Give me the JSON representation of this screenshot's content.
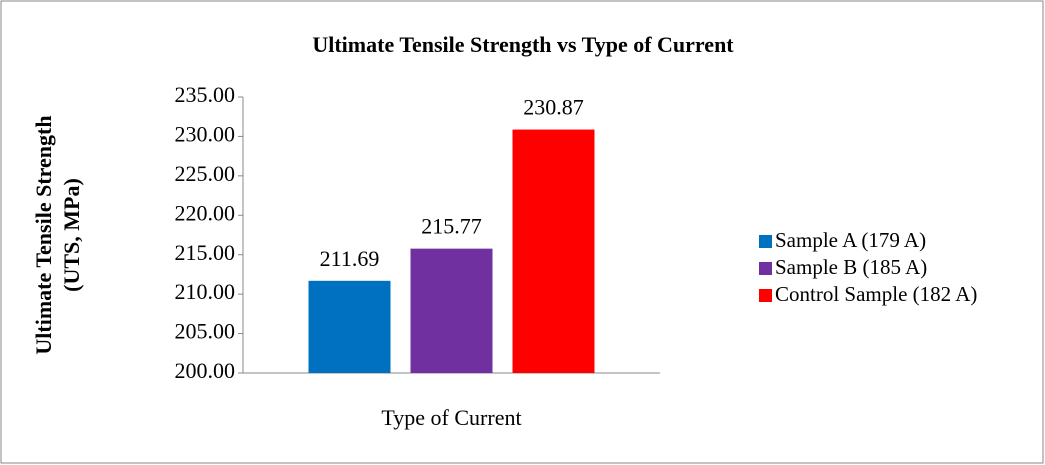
{
  "chart_data": {
    "type": "bar",
    "title": "Ultimate Tensile Strength vs Type of Current",
    "y_label": [
      "Ultimate Tensile Strength",
      "(UTS, MPa)"
    ],
    "categories": [
      "Type of Current"
    ],
    "series": [
      {
        "name": "Sample A (179 A)",
        "color": "#0070c0",
        "values": [
          211.69
        ]
      },
      {
        "name": "Sample B (185 A)",
        "color": "#7030a0",
        "values": [
          215.77
        ]
      },
      {
        "name": "Control Sample (182 A)",
        "color": "#ff0000",
        "values": [
          230.87
        ]
      }
    ],
    "ylim": [
      200,
      235
    ],
    "yticks": [
      {
        "value": 200,
        "label": "200.00"
      },
      {
        "value": 205,
        "label": "205.00"
      },
      {
        "value": 210,
        "label": "210.00"
      },
      {
        "value": 215,
        "label": "215.00"
      },
      {
        "value": 220,
        "label": "220.00"
      },
      {
        "value": 225,
        "label": "225.00"
      },
      {
        "value": 230,
        "label": "230.00"
      },
      {
        "value": 235,
        "label": "235.00"
      }
    ],
    "grid": false,
    "legend": "right"
  }
}
